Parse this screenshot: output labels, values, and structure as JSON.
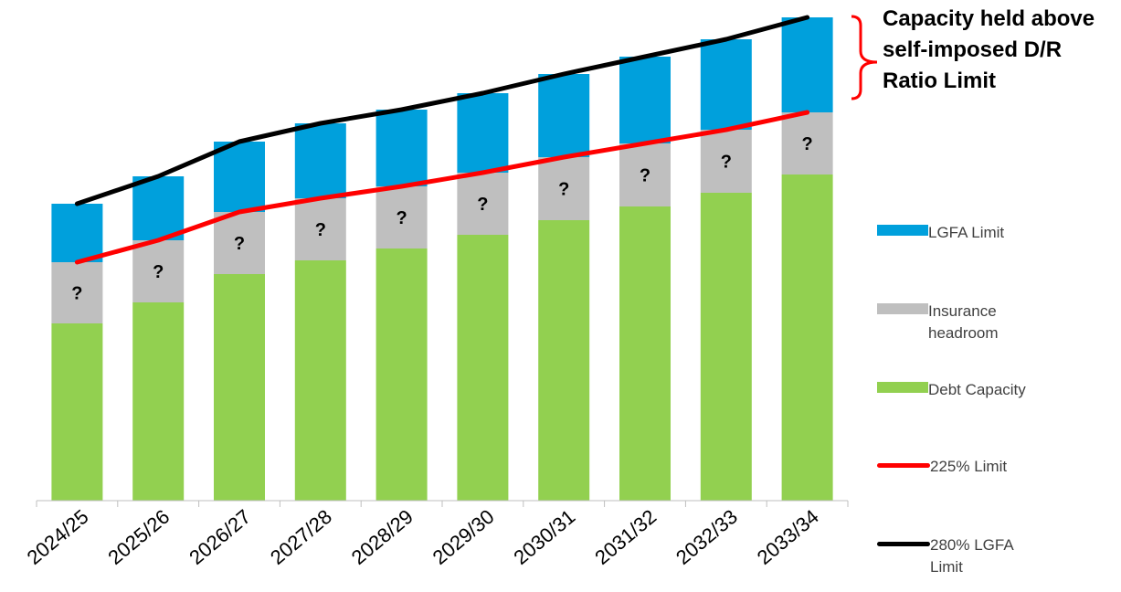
{
  "chart_data": {
    "type": "bar",
    "stacked": true,
    "categories": [
      "2024/25",
      "2025/26",
      "2026/27",
      "2027/28",
      "2028/29",
      "2029/30",
      "2030/31",
      "2031/32",
      "2032/33",
      "2033/34"
    ],
    "series": [
      {
        "name": "Debt Capacity",
        "kind": "bar",
        "color": "#92d050",
        "values": [
          194,
          217,
          248,
          263,
          276,
          291,
          307,
          322,
          337,
          357
        ]
      },
      {
        "name": "Insurance headroom",
        "kind": "bar",
        "color": "#bfbfbf",
        "bar_label": "?",
        "values": [
          67,
          68,
          68,
          68,
          68,
          68,
          69,
          69,
          69,
          68
        ]
      },
      {
        "name": "LGFA Limit",
        "kind": "bar",
        "color": "#00a0dc",
        "values": [
          64,
          70,
          77,
          82,
          84,
          87,
          91,
          95,
          99,
          104
        ]
      },
      {
        "name": "225% Limit",
        "kind": "line",
        "color": "#ff0000",
        "values": [
          261,
          285,
          316,
          331,
          344,
          359,
          376,
          391,
          406,
          425
        ]
      },
      {
        "name": "280% LGFA Limit",
        "kind": "line",
        "color": "#000000",
        "values": [
          325,
          355,
          393,
          413,
          428,
          446,
          467,
          486,
          505,
          529
        ]
      }
    ],
    "ylim": [
      0,
      530
    ],
    "y_axis_shown": false,
    "grid": false,
    "title": "",
    "xlabel": "",
    "ylabel": "",
    "legend_position": "right",
    "annotation": "Capacity held above self-imposed D/R Ratio Limit",
    "annotation_bracket_color": "#ff0000"
  }
}
